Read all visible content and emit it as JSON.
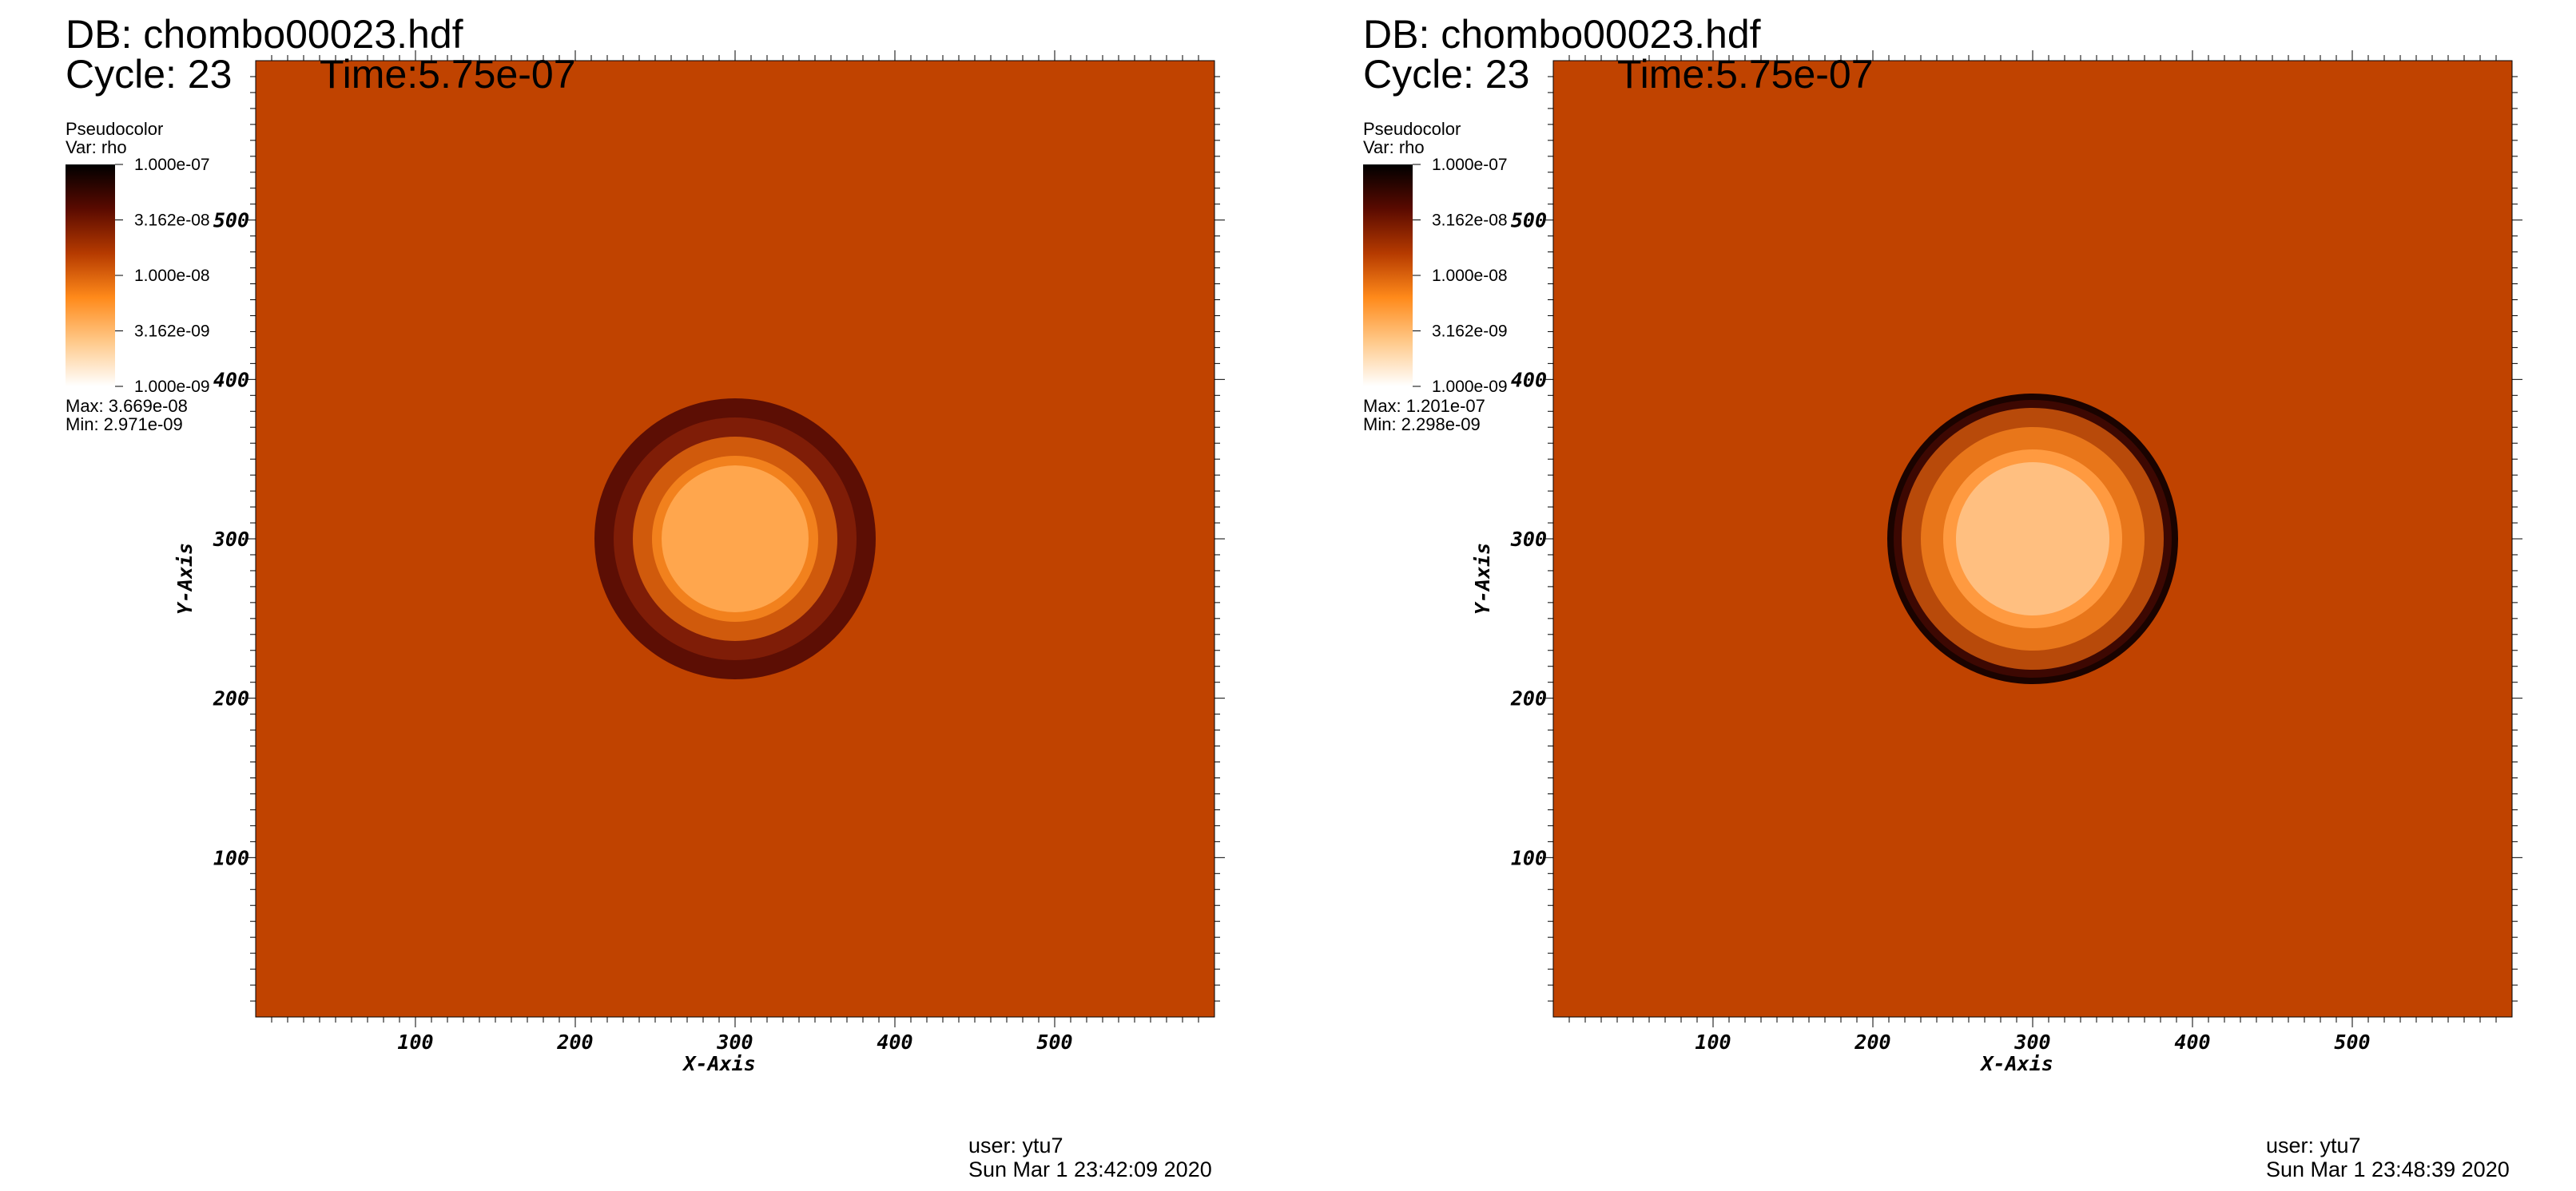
{
  "chart_data": [
    {
      "type": "heatmap",
      "plot_kind": "Pseudocolor",
      "variable": "Var: rho",
      "db_label": "DB: chombo00023.hdf",
      "cycle_label": "Cycle: 23",
      "time_label": "Time:5.75e-07",
      "xlabel": "X-Axis",
      "ylabel": "Y-Axis",
      "xlim": [
        0,
        600
      ],
      "ylim": [
        0,
        600
      ],
      "xticks": [
        "100",
        "200",
        "300",
        "400",
        "500"
      ],
      "yticks": [
        "100",
        "200",
        "300",
        "400",
        "500"
      ],
      "colorbar": {
        "scale": "log",
        "range": [
          1e-09,
          1e-07
        ],
        "tick_labels": [
          "1.000e-07",
          "3.162e-08",
          "1.000e-08",
          "3.162e-09",
          "1.000e-09"
        ],
        "colors": [
          "#000000",
          "#5a0a00",
          "#b53a00",
          "#ff8a1a",
          "#ffc98a",
          "#ffffff"
        ]
      },
      "max_label": "Max:  3.669e-08",
      "min_label": "Min:  2.971e-09",
      "background_color": "#c04300",
      "circle_center": [
        300,
        300
      ],
      "rings": [
        {
          "radius": 88,
          "color": "#5c0e04"
        },
        {
          "radius": 76,
          "color": "#7f1d07"
        },
        {
          "radius": 64,
          "color": "#d05a0c"
        },
        {
          "radius": 52,
          "color": "#f2811d"
        },
        {
          "radius": 46,
          "color": "#ffa64d"
        }
      ],
      "user_label": "user: ytu7",
      "date_label": "Sun Mar  1 23:42:09 2020"
    },
    {
      "type": "heatmap",
      "plot_kind": "Pseudocolor",
      "variable": "Var: rho",
      "db_label": "DB: chombo00023.hdf",
      "cycle_label": "Cycle: 23",
      "time_label": "Time:5.75e-07",
      "xlabel": "X-Axis",
      "ylabel": "Y-Axis",
      "xlim": [
        0,
        600
      ],
      "ylim": [
        0,
        600
      ],
      "xticks": [
        "100",
        "200",
        "300",
        "400",
        "500"
      ],
      "yticks": [
        "100",
        "200",
        "300",
        "400",
        "500"
      ],
      "colorbar": {
        "scale": "log",
        "range": [
          1e-09,
          1e-07
        ],
        "tick_labels": [
          "1.000e-07",
          "3.162e-08",
          "1.000e-08",
          "3.162e-09",
          "1.000e-09"
        ],
        "colors": [
          "#000000",
          "#5a0a00",
          "#b53a00",
          "#ff8a1a",
          "#ffc98a",
          "#ffffff"
        ]
      },
      "max_label": "Max:  1.201e-07",
      "min_label": "Min:  2.298e-09",
      "background_color": "#c04300",
      "circle_center": [
        300,
        300
      ],
      "rings": [
        {
          "radius": 91,
          "color": "#1a0300"
        },
        {
          "radius": 87,
          "color": "#3d0802"
        },
        {
          "radius": 82,
          "color": "#b84a0a"
        },
        {
          "radius": 70,
          "color": "#e8761a"
        },
        {
          "radius": 56,
          "color": "#ff9a40"
        },
        {
          "radius": 48,
          "color": "#ffbf80"
        }
      ],
      "user_label": "user: ytu7",
      "date_label": "Sun Mar  1 23:48:39 2020"
    }
  ]
}
